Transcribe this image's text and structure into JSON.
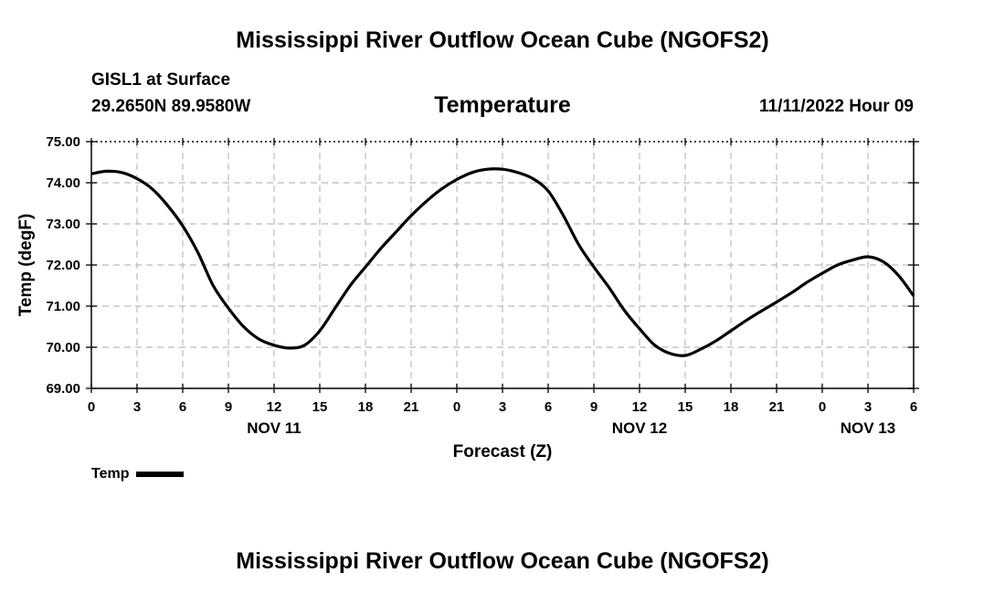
{
  "header": {
    "title": "Mississippi River Outflow Ocean Cube (NGOFS2)",
    "station_name": "GISL1 at Surface",
    "station_coords": "29.2650N  89.9580W",
    "chart_title": "Temperature",
    "datetime": "11/11/2022 Hour 09"
  },
  "footer": {
    "title": "Mississippi River Outflow Ocean Cube (NGOFS2)"
  },
  "legend": {
    "label": "Temp",
    "color": "#000000"
  },
  "chart_data": {
    "type": "line",
    "title": "Temperature",
    "xlabel": "Forecast (Z)",
    "ylabel": "Temp (degF)",
    "xlim": [
      0,
      54
    ],
    "ylim": [
      69,
      75
    ],
    "grid": true,
    "x_ticks": [
      0,
      3,
      6,
      9,
      12,
      15,
      18,
      21,
      24,
      27,
      30,
      33,
      36,
      39,
      42,
      45,
      48,
      51,
      54
    ],
    "x_tick_labels": [
      "0",
      "3",
      "6",
      "9",
      "12",
      "15",
      "18",
      "21",
      "0",
      "3",
      "6",
      "9",
      "12",
      "15",
      "18",
      "21",
      "0",
      "3",
      "6"
    ],
    "y_ticks": [
      69,
      70,
      71,
      72,
      73,
      74,
      75
    ],
    "y_tick_labels": [
      "69.00",
      "70.00",
      "71.00",
      "72.00",
      "73.00",
      "74.00",
      "75.00"
    ],
    "date_labels": [
      {
        "x": 12,
        "text": "NOV 11"
      },
      {
        "x": 36,
        "text": "NOV 12"
      },
      {
        "x": 51,
        "text": "NOV 13"
      }
    ],
    "series": [
      {
        "name": "Temp",
        "color": "#000000",
        "x": [
          0,
          1,
          2,
          3,
          4,
          5,
          6,
          7,
          8,
          9,
          10,
          11,
          12,
          13,
          14,
          15,
          16,
          17,
          18,
          19,
          20,
          21,
          22,
          23,
          24,
          25,
          26,
          27,
          28,
          29,
          30,
          31,
          32,
          33,
          34,
          35,
          36,
          37,
          38,
          39,
          40,
          41,
          42,
          43,
          44,
          45,
          46,
          47,
          48,
          49,
          50,
          51,
          52,
          53,
          54
        ],
        "values": [
          74.22,
          74.28,
          74.25,
          74.1,
          73.85,
          73.45,
          72.95,
          72.3,
          71.5,
          70.95,
          70.5,
          70.2,
          70.05,
          69.98,
          70.05,
          70.4,
          70.95,
          71.5,
          71.95,
          72.4,
          72.8,
          73.2,
          73.55,
          73.85,
          74.08,
          74.25,
          74.33,
          74.33,
          74.25,
          74.1,
          73.8,
          73.2,
          72.5,
          71.95,
          71.45,
          70.9,
          70.45,
          70.05,
          69.85,
          69.8,
          69.95,
          70.15,
          70.4,
          70.65,
          70.88,
          71.1,
          71.33,
          71.58,
          71.8,
          72.0,
          72.12,
          72.2,
          72.08,
          71.75,
          71.25
        ]
      }
    ]
  }
}
